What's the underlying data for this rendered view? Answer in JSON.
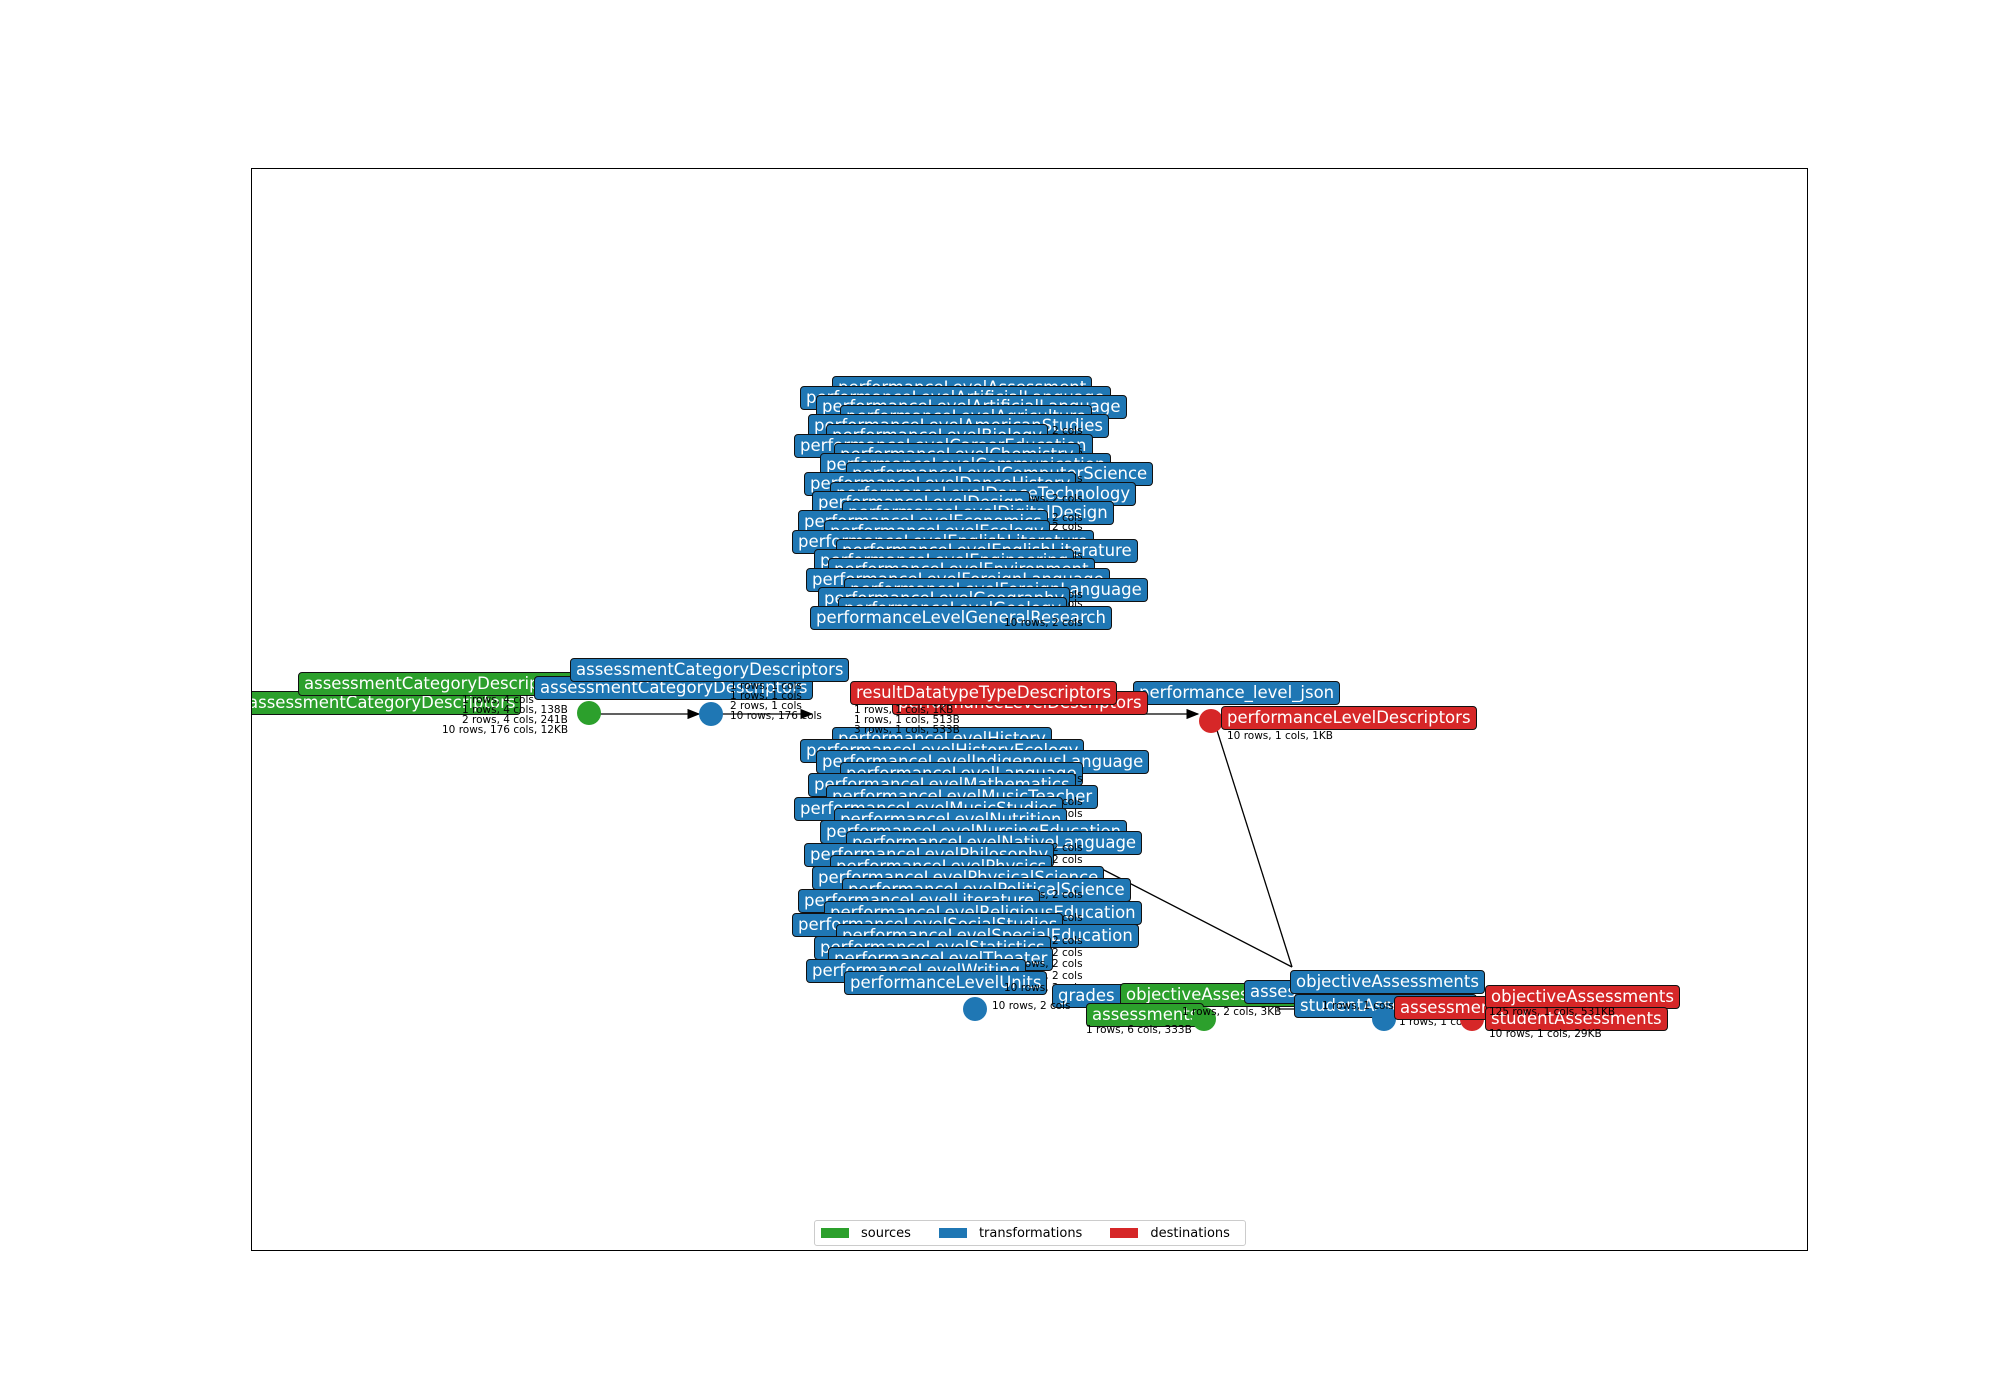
{
  "legend": {
    "sources": {
      "label": "sources",
      "color": "#2ca02c"
    },
    "transformations": {
      "label": "transformations",
      "color": "#1f77b4"
    },
    "destinations": {
      "label": "destinations",
      "color": "#d62728"
    }
  },
  "source_nodes": [
    {
      "label": "assessmentCategoryDescriptors"
    },
    {
      "label": "assessmentCategoryDescriptors"
    },
    {
      "label": "objectiveAssessments"
    },
    {
      "label": "assessments"
    }
  ],
  "transformation_nodes_left": [
    {
      "label": "assessmentCategoryDescriptors"
    },
    {
      "label": "assessmentCategoryDescriptors"
    }
  ],
  "transformation_stack_upper": [
    "performanceLevelAssessment",
    "performanceLevelArtificialLanguage",
    "performanceLevelArtificialLanguage",
    "performanceLevelAgriculture",
    "performanceLevelAmericanStudies",
    "performanceLevelBiology",
    "performanceLevelCareerEducation",
    "performanceLevelChemistry",
    "performanceLevelCommunication",
    "performanceLevelComputerScience",
    "performanceLevelDanceHistory",
    "performanceLevelDanceTechnology",
    "performanceLevelDesign",
    "performanceLevelDigitalDesign",
    "performanceLevelEconomics",
    "performanceLevelEcology",
    "performanceLevelEnglishLiterature",
    "performanceLevelEnglishLiterature",
    "performanceLevelEngineering",
    "performanceLevelEnvironment",
    "performanceLevelForeignLanguage",
    "performanceLevelForeignLanguage",
    "performanceLevelGeography",
    "performanceLevelGeology",
    "performanceLevelGeneralResearch"
  ],
  "transformation_stack_lower": [
    "performanceLevelHistory",
    "performanceLevelHistoryEcology",
    "performanceLevelIndigenousLanguage",
    "performanceLevelLanguage",
    "performanceLevelMathematics",
    "performanceLevelMusicTeacher",
    "performanceLevelMusicStudies",
    "performanceLevelNutrition",
    "performanceLevelNursingEducation",
    "performanceLevelNativeLanguage",
    "performanceLevelPhilosophy",
    "performanceLevelPhysics",
    "performanceLevelPhysicalScience",
    "performanceLevelPoliticalScience",
    "performanceLevelLiterature",
    "performanceLevelReligiousEducation",
    "performanceLevelSocialStudies",
    "performanceLevelSpecialEducation",
    "performanceLevelStatistics",
    "performanceLevelTheater",
    "performanceLevelWriting",
    "performanceLevelUnits"
  ],
  "transformation_nodes_right": [
    {
      "label": "performance_level_json"
    },
    {
      "label": "grades_json"
    },
    {
      "label": "objectiveAssessments"
    },
    {
      "label": "assessments"
    },
    {
      "label": "studentAssessments"
    }
  ],
  "destination_nodes": [
    {
      "label": "resultDatatypeTypeDescriptors"
    },
    {
      "label": "performanceLevelDescriptors"
    },
    {
      "label": "performanceLevelDescriptors"
    },
    {
      "label": "objectiveAssessments"
    },
    {
      "label": "assessments"
    },
    {
      "label": "studentAssessments"
    }
  ],
  "stats": {
    "src1": "1 rows, 4 cols",
    "src2": "1 rows, 4 cols, 138B",
    "src3": "2 rows, 4 cols, 241B",
    "src4": "10 rows, 176 cols, 12KB",
    "tl1": "1 rows, 1 cols",
    "tl2": "1 rows, 1 cols",
    "tl3": "2 rows, 1 cols",
    "tl4": "10 rows, 176 cols",
    "stack_row": "10 rows, 2 cols",
    "rd1": "1 rows, 1 cols, 1KB",
    "rd2": "1 rows, 1 cols, 513B",
    "rd3": "3 rows, 1 cols, 533B",
    "pld": "10 rows, 1 cols, 1KB",
    "grades": "10 rows, 2 cols",
    "assess_src": "1 rows, 6 cols, 333B",
    "obj_src": "1 rows, 2 cols, 3KB",
    "stud_t": "1 rows, 1 cols",
    "assess_t": "1 rows, 1 cols",
    "obj_d": "125 rows, 1 cols, 531KB",
    "stud_d": "10 rows, 1 cols, 29KB"
  }
}
